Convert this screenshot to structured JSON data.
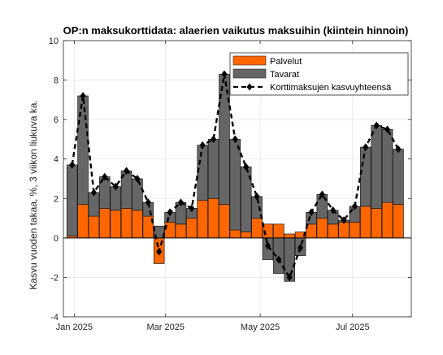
{
  "chart_data": {
    "type": "bar",
    "stacked": true,
    "title": "OP:n maksukorttidata: alaerien vaikutus maksuihin (kiintein hinnoin)",
    "xlabel": "",
    "ylabel": "Kasvu vuoden takaa, %, 3 viikon liukuva ka.",
    "ylim": [
      -4,
      10
    ],
    "yticks": [
      -4,
      -2,
      0,
      2,
      4,
      6,
      8,
      10
    ],
    "xticks": [
      {
        "label": "Jan 2025",
        "at": 0.2
      },
      {
        "label": "Mar 2025",
        "at": 8.6
      },
      {
        "label": "May 2025",
        "at": 17.3
      },
      {
        "label": "Jul 2025",
        "at": 25.8
      }
    ],
    "x_range": [
      -0.8,
      31.2
    ],
    "grid": true,
    "legend_position": "top-right",
    "series": [
      {
        "name": "Palvelut",
        "color": "#ff6600",
        "values": [
          0.1,
          1.7,
          1.1,
          1.5,
          1.4,
          1.5,
          1.4,
          1.1,
          -1.3,
          0.8,
          0.7,
          1.0,
          1.9,
          2.0,
          1.7,
          0.4,
          0.3,
          1.0,
          0.7,
          0.7,
          0.2,
          0.3,
          0.7,
          1.0,
          0.7,
          0.8,
          0.8,
          1.6,
          1.5,
          1.8,
          1.7
        ]
      },
      {
        "name": "Tavarat",
        "color": "#666666",
        "values": [
          3.6,
          5.5,
          1.2,
          1.6,
          1.2,
          1.9,
          1.6,
          0.7,
          0.6,
          0.5,
          1.1,
          0.5,
          2.8,
          3.0,
          6.6,
          4.6,
          3.3,
          1.1,
          -1.1,
          -1.8,
          -2.2,
          -0.9,
          0.6,
          1.2,
          0.7,
          0.1,
          0.8,
          3.0,
          4.2,
          3.7,
          2.8
        ]
      }
    ],
    "total_line": {
      "name": "Korttimaksujen kasvuyhteensä",
      "color": "#000000",
      "values": [
        3.7,
        7.2,
        2.3,
        3.1,
        2.6,
        3.4,
        3.0,
        1.8,
        -0.7,
        1.3,
        1.8,
        1.5,
        4.7,
        5.0,
        8.3,
        5.0,
        3.6,
        2.1,
        -0.4,
        -1.1,
        -2.0,
        -0.5,
        1.3,
        2.2,
        1.4,
        0.9,
        1.6,
        4.6,
        5.7,
        5.5,
        4.5
      ]
    }
  }
}
